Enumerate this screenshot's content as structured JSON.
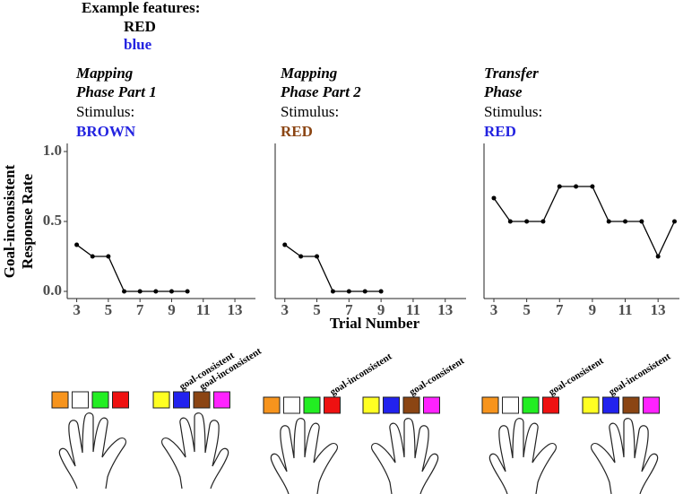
{
  "example_features": {
    "title": "Example features:",
    "items": [
      {
        "text": "RED",
        "color": "#000000"
      },
      {
        "text": "blue",
        "color": "#2323e0"
      }
    ]
  },
  "chart_data": [
    {
      "type": "line",
      "title": [
        "Mapping",
        "Phase Part 1"
      ],
      "stimulus_label": "Stimulus:",
      "stimulus": "BROWN",
      "stimulus_color": "#2323e0",
      "ylabel": [
        "Goal-inconsistent",
        "Response Rate"
      ],
      "x": [
        3,
        4,
        5,
        6,
        7,
        8,
        9,
        10
      ],
      "values": [
        0.333,
        0.25,
        0.25,
        0,
        0,
        0,
        0,
        0
      ],
      "color": "#000000",
      "xlim": [
        2.4,
        14.3
      ],
      "ylim": [
        -0.05,
        1.0
      ],
      "xticks": [
        3,
        5,
        7,
        9,
        11,
        13
      ],
      "yticks": [
        {
          "value": 0,
          "label": "0.0"
        },
        {
          "value": 0.5,
          "label": "0.5"
        },
        {
          "value": 1,
          "label": "1.0"
        }
      ],
      "response_keys": [
        {
          "keys": [
            {
              "color": "#f7941d"
            },
            {
              "color": "#ffffff"
            },
            {
              "color": "#22ee22"
            },
            {
              "color": "#ee1111"
            }
          ]
        },
        {
          "keys": [
            {
              "color": "#ffff22"
            },
            {
              "color": "#2222ee",
              "label": "goal-consistent"
            },
            {
              "color": "#8b4513",
              "label": "goal-inconsistent"
            },
            {
              "color": "#ff22ff"
            }
          ]
        }
      ]
    },
    {
      "type": "line",
      "title": [
        "Mapping",
        "Phase Part 2"
      ],
      "stimulus_label": "Stimulus:",
      "stimulus": "RED",
      "stimulus_color": "#8b4513",
      "xlabel": "Trial Number",
      "x": [
        3,
        4,
        5,
        6,
        7,
        8,
        9
      ],
      "values": [
        0.333,
        0.25,
        0.25,
        0,
        0,
        0,
        0
      ],
      "color": "#000000",
      "xlim": [
        2.4,
        14.3
      ],
      "ylim": [
        -0.05,
        1.0
      ],
      "xticks": [
        3,
        5,
        7,
        9,
        11,
        13
      ],
      "response_keys": [
        {
          "keys": [
            {
              "color": "#f7941d"
            },
            {
              "color": "#ffffff"
            },
            {
              "color": "#22ee22"
            },
            {
              "color": "#ee1111",
              "label": "goal-inconsistent"
            }
          ]
        },
        {
          "keys": [
            {
              "color": "#ffff22"
            },
            {
              "color": "#2222ee"
            },
            {
              "color": "#8b4513",
              "label": "goal-consistent"
            },
            {
              "color": "#ff22ff"
            }
          ]
        }
      ]
    },
    {
      "type": "line",
      "title": [
        "Transfer",
        "Phase"
      ],
      "stimulus_label": "Stimulus:",
      "stimulus": "RED",
      "stimulus_color": "#2323e0",
      "x": [
        3,
        4,
        5,
        6,
        7,
        8,
        9,
        10,
        11,
        12,
        13,
        14
      ],
      "values": [
        0.667,
        0.5,
        0.5,
        0.5,
        0.75,
        0.75,
        0.75,
        0.5,
        0.5,
        0.5,
        0.25,
        0.5
      ],
      "color": "#000000",
      "xlim": [
        2.4,
        14.3
      ],
      "ylim": [
        -0.05,
        1.0
      ],
      "xticks": [
        3,
        5,
        7,
        9,
        11,
        13
      ],
      "response_keys": [
        {
          "keys": [
            {
              "color": "#f7941d"
            },
            {
              "color": "#ffffff"
            },
            {
              "color": "#22ee22"
            },
            {
              "color": "#ee1111",
              "label": "goal-consistent"
            }
          ]
        },
        {
          "keys": [
            {
              "color": "#ffff22"
            },
            {
              "color": "#2222ee",
              "label": "goal-inconsistent"
            },
            {
              "color": "#8b4513"
            },
            {
              "color": "#ff22ff"
            }
          ]
        }
      ]
    }
  ]
}
